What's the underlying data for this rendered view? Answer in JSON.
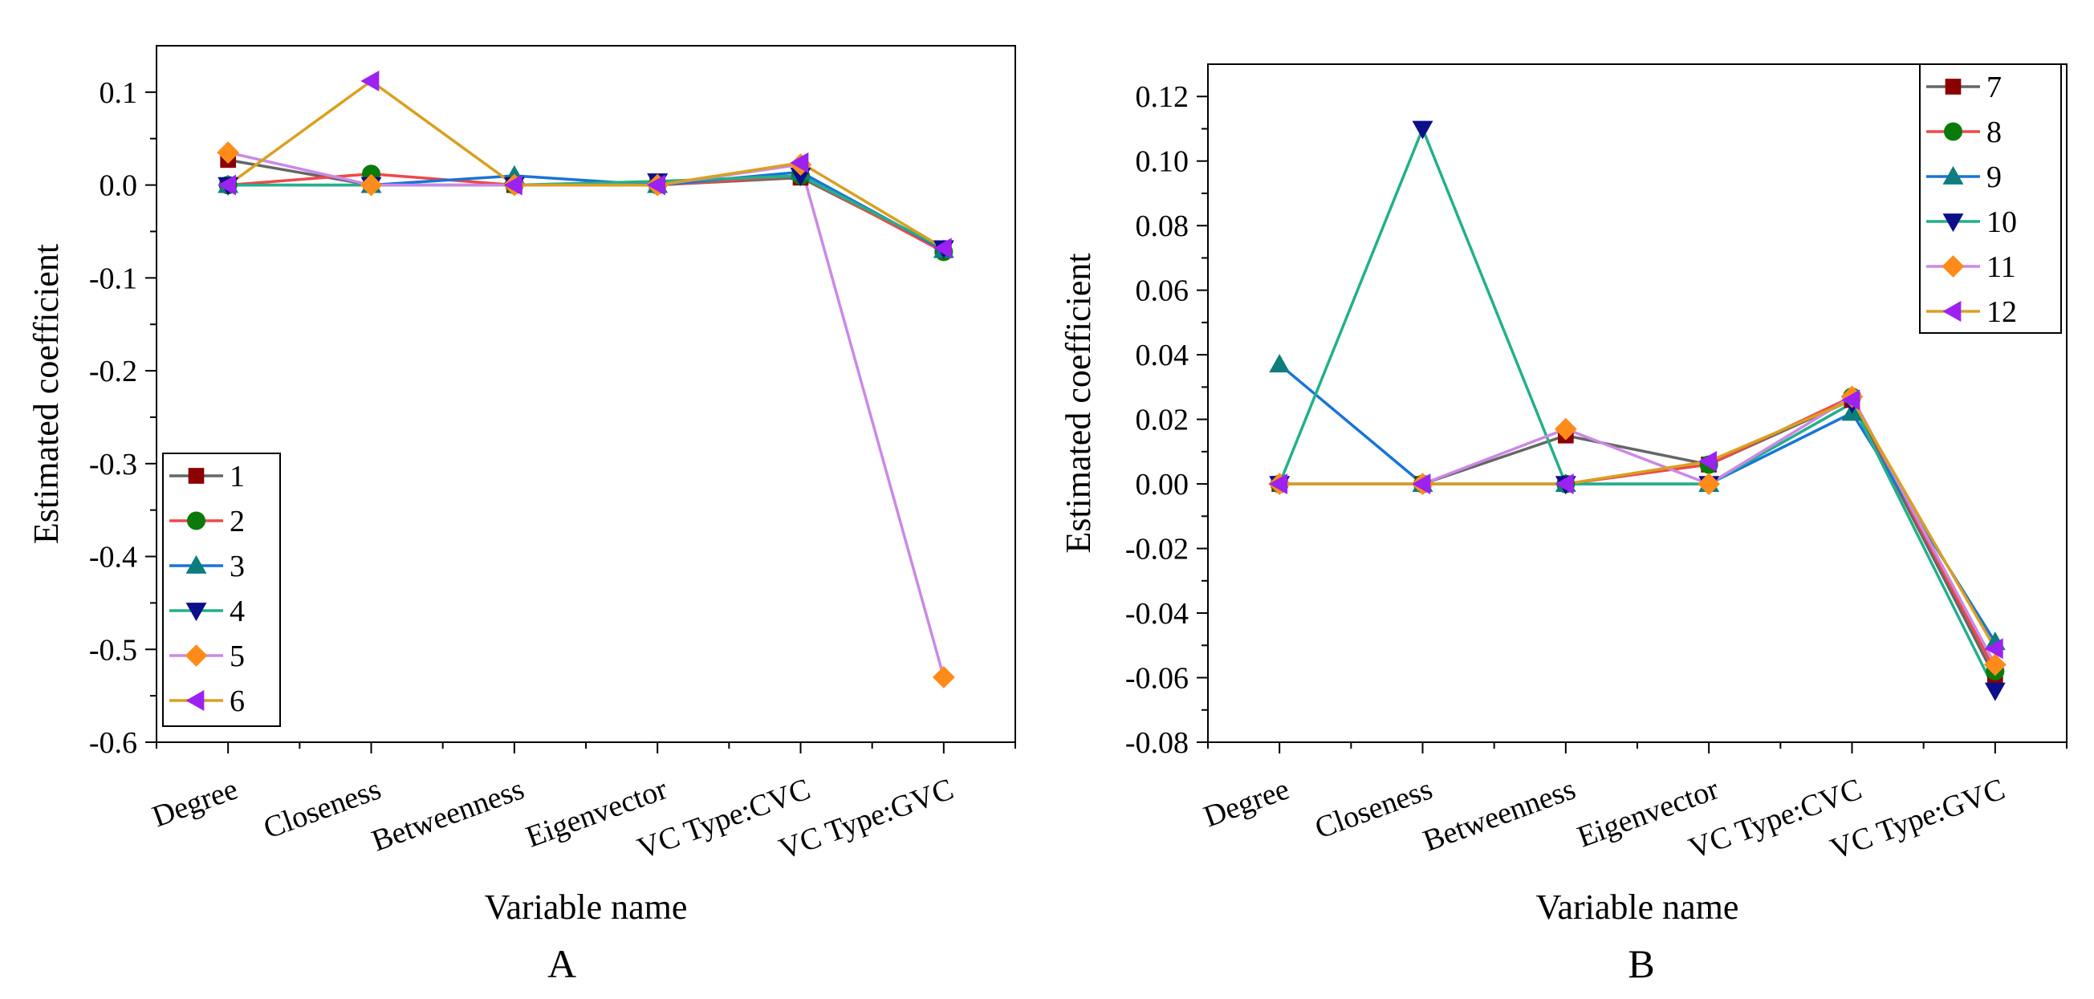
{
  "chart_data": [
    {
      "type": "line",
      "panel_label": "A",
      "xlabel": "Variable name",
      "ylabel": "Estimated coefficient",
      "categories": [
        "Degree",
        "Closeness",
        "Betweenness",
        "Eigenvector",
        "VC Type:CVC",
        "VC Type:GVC"
      ],
      "ylim": [
        -0.6,
        0.15
      ],
      "yticks": [
        -0.6,
        -0.5,
        -0.4,
        -0.3,
        -0.2,
        -0.1,
        0.0,
        0.1
      ],
      "ytick_labels": [
        "-0.6",
        "-0.5",
        "-0.4",
        "-0.3",
        "-0.2",
        "-0.1",
        "0.0",
        "0.1"
      ],
      "legend_position": "bottom-left",
      "series": [
        {
          "name": "1",
          "color": "#666666",
          "marker": "square",
          "marker_color": "#8b0000",
          "values": [
            0.027,
            0.0,
            0.0,
            0.0,
            0.008,
            -0.07
          ]
        },
        {
          "name": "2",
          "color": "#f04848",
          "marker": "circle",
          "marker_color": "#0a7a0a",
          "values": [
            0.0,
            0.012,
            0.0,
            0.0,
            0.01,
            -0.072
          ]
        },
        {
          "name": "3",
          "color": "#1874d8",
          "marker": "triangle-up",
          "marker_color": "#0e7d7d",
          "values": [
            0.0,
            0.0,
            0.01,
            0.0,
            0.014,
            -0.07
          ]
        },
        {
          "name": "4",
          "color": "#22b08a",
          "marker": "triangle-down",
          "marker_color": "#0c0f8a",
          "values": [
            0.0,
            0.0,
            0.0,
            0.004,
            0.01,
            -0.068
          ]
        },
        {
          "name": "5",
          "color": "#cc88e6",
          "marker": "diamond",
          "marker_color": "#ff8c1a",
          "values": [
            0.035,
            0.0,
            0.0,
            0.0,
            0.022,
            -0.53
          ]
        },
        {
          "name": "6",
          "color": "#d9a020",
          "marker": "triangle-left",
          "marker_color": "#9b22f0",
          "values": [
            0.0,
            0.112,
            0.0,
            0.0,
            0.024,
            -0.068
          ]
        }
      ]
    },
    {
      "type": "line",
      "panel_label": "B",
      "xlabel": "Variable name",
      "ylabel": "Estimated coefficient",
      "categories": [
        "Degree",
        "Closeness",
        "Betweenness",
        "Eigenvector",
        "VC Type:CVC",
        "VC Type:GVC"
      ],
      "ylim": [
        -0.08,
        0.13
      ],
      "yticks": [
        -0.08,
        -0.06,
        -0.04,
        -0.02,
        0.0,
        0.02,
        0.04,
        0.06,
        0.08,
        0.1,
        0.12
      ],
      "ytick_labels": [
        "-0.08",
        "-0.06",
        "-0.04",
        "-0.02",
        "0.00",
        "0.02",
        "0.04",
        "0.06",
        "0.08",
        "0.10",
        "0.12"
      ],
      "legend_position": "top-right",
      "series": [
        {
          "name": "7",
          "color": "#666666",
          "marker": "square",
          "marker_color": "#8b0000",
          "values": [
            0.0,
            0.0,
            0.015,
            0.006,
            0.026,
            -0.06
          ]
        },
        {
          "name": "8",
          "color": "#f04848",
          "marker": "circle",
          "marker_color": "#0a7a0a",
          "values": [
            0.0,
            0.0,
            0.0,
            0.006,
            0.027,
            -0.058
          ]
        },
        {
          "name": "9",
          "color": "#1874d8",
          "marker": "triangle-up",
          "marker_color": "#0e7d7d",
          "values": [
            0.037,
            0.0,
            0.0,
            0.0,
            0.022,
            -0.049
          ]
        },
        {
          "name": "10",
          "color": "#22b08a",
          "marker": "triangle-down",
          "marker_color": "#0c0f8a",
          "values": [
            0.0,
            0.11,
            0.0,
            0.0,
            0.025,
            -0.064
          ]
        },
        {
          "name": "11",
          "color": "#cc88e6",
          "marker": "diamond",
          "marker_color": "#ff8c1a",
          "values": [
            0.0,
            0.0,
            0.017,
            0.0,
            0.027,
            -0.056
          ]
        },
        {
          "name": "12",
          "color": "#d9a020",
          "marker": "triangle-left",
          "marker_color": "#9b22f0",
          "values": [
            0.0,
            0.0,
            0.0,
            0.007,
            0.026,
            -0.051
          ]
        }
      ]
    }
  ]
}
